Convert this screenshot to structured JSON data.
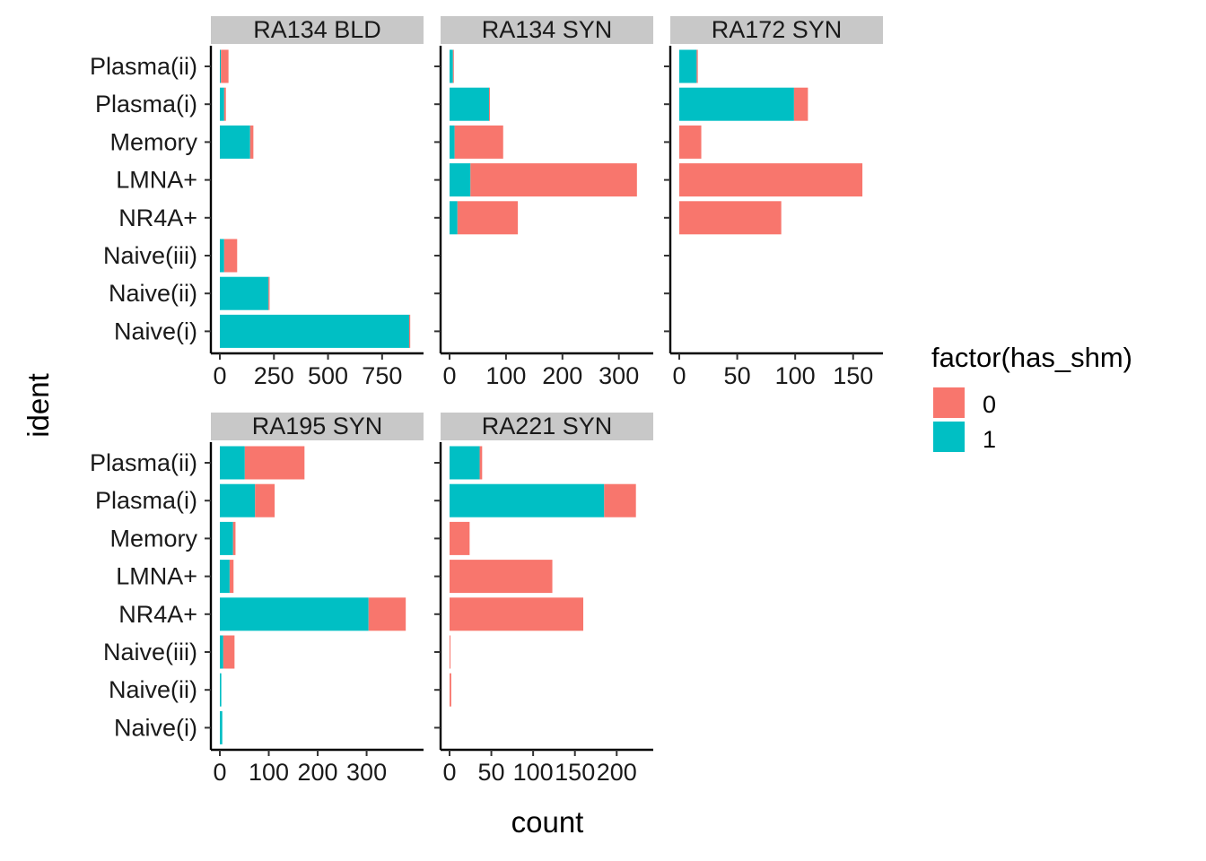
{
  "chart_data": {
    "type": "bar",
    "stacked": true,
    "orientation": "horizontal",
    "categories": [
      "Plasma(ii)",
      "Plasma(i)",
      "Memory",
      "LMNA+",
      "NR4A+",
      "Naive(iii)",
      "Naive(ii)",
      "Naive(i)"
    ],
    "xlabel": "count",
    "ylabel": "ident",
    "legend": {
      "title": "factor(has_shm)",
      "placement": "right",
      "entries": [
        {
          "key": "0",
          "label": "0",
          "color": "#F8766D"
        },
        {
          "key": "1",
          "label": "1",
          "color": "#00BFC4"
        }
      ]
    },
    "panels": [
      {
        "title": "RA134_BLD",
        "xlim": [
          0,
          900
        ],
        "xticks": [
          0,
          250,
          500,
          750
        ],
        "xtick_labels": [
          "0",
          "250",
          "500",
          "750"
        ],
        "series": [
          {
            "name": "0",
            "values": [
              35,
              8,
              15,
              0,
              0,
              60,
              5,
              5
            ]
          },
          {
            "name": "1",
            "values": [
              5,
              20,
              140,
              0,
              0,
              20,
              225,
              875
            ]
          }
        ]
      },
      {
        "title": "RA134_SYN",
        "xlim": [
          0,
          345
        ],
        "xticks": [
          0,
          100,
          200,
          300
        ],
        "xtick_labels": [
          "0",
          "100",
          "200",
          "300"
        ],
        "series": [
          {
            "name": "0",
            "values": [
              1,
              1,
              86,
              295,
              107,
              0,
              0,
              0
            ]
          },
          {
            "name": "1",
            "values": [
              6,
              70,
              9,
              37,
              14,
              0,
              0,
              0
            ]
          }
        ]
      },
      {
        "title": "RA172_SYN",
        "xlim": [
          0,
          168
        ],
        "xticks": [
          0,
          50,
          100,
          150
        ],
        "xtick_labels": [
          "0",
          "50",
          "100",
          "150"
        ],
        "series": [
          {
            "name": "0",
            "values": [
              1,
              12,
              19,
              158,
              88,
              0,
              0,
              0
            ]
          },
          {
            "name": "1",
            "values": [
              15,
              99,
              0,
              0,
              0,
              0,
              0,
              0
            ]
          }
        ]
      },
      {
        "title": "RA195_SYN",
        "xlim": [
          0,
          398
        ],
        "xticks": [
          0,
          100,
          200,
          300
        ],
        "xtick_labels": [
          "0",
          "100",
          "200",
          "300"
        ],
        "series": [
          {
            "name": "0",
            "values": [
              122,
              40,
              5,
              8,
              76,
              23,
              0,
              0
            ]
          },
          {
            "name": "1",
            "values": [
              51,
              72,
              27,
              20,
              304,
              7,
              3,
              5
            ]
          }
        ]
      },
      {
        "title": "RA221_SYN",
        "xlim": [
          0,
          233
        ],
        "xticks": [
          0,
          50,
          100,
          150,
          200
        ],
        "xtick_labels": [
          "0",
          "50",
          "100",
          "150",
          "200"
        ],
        "series": [
          {
            "name": "0",
            "values": [
              3,
              38,
              24,
              123,
              160,
              1,
              2,
              0
            ]
          },
          {
            "name": "1",
            "values": [
              36,
              185,
              0,
              0,
              0,
              0,
              0,
              0
            ]
          }
        ]
      }
    ]
  }
}
